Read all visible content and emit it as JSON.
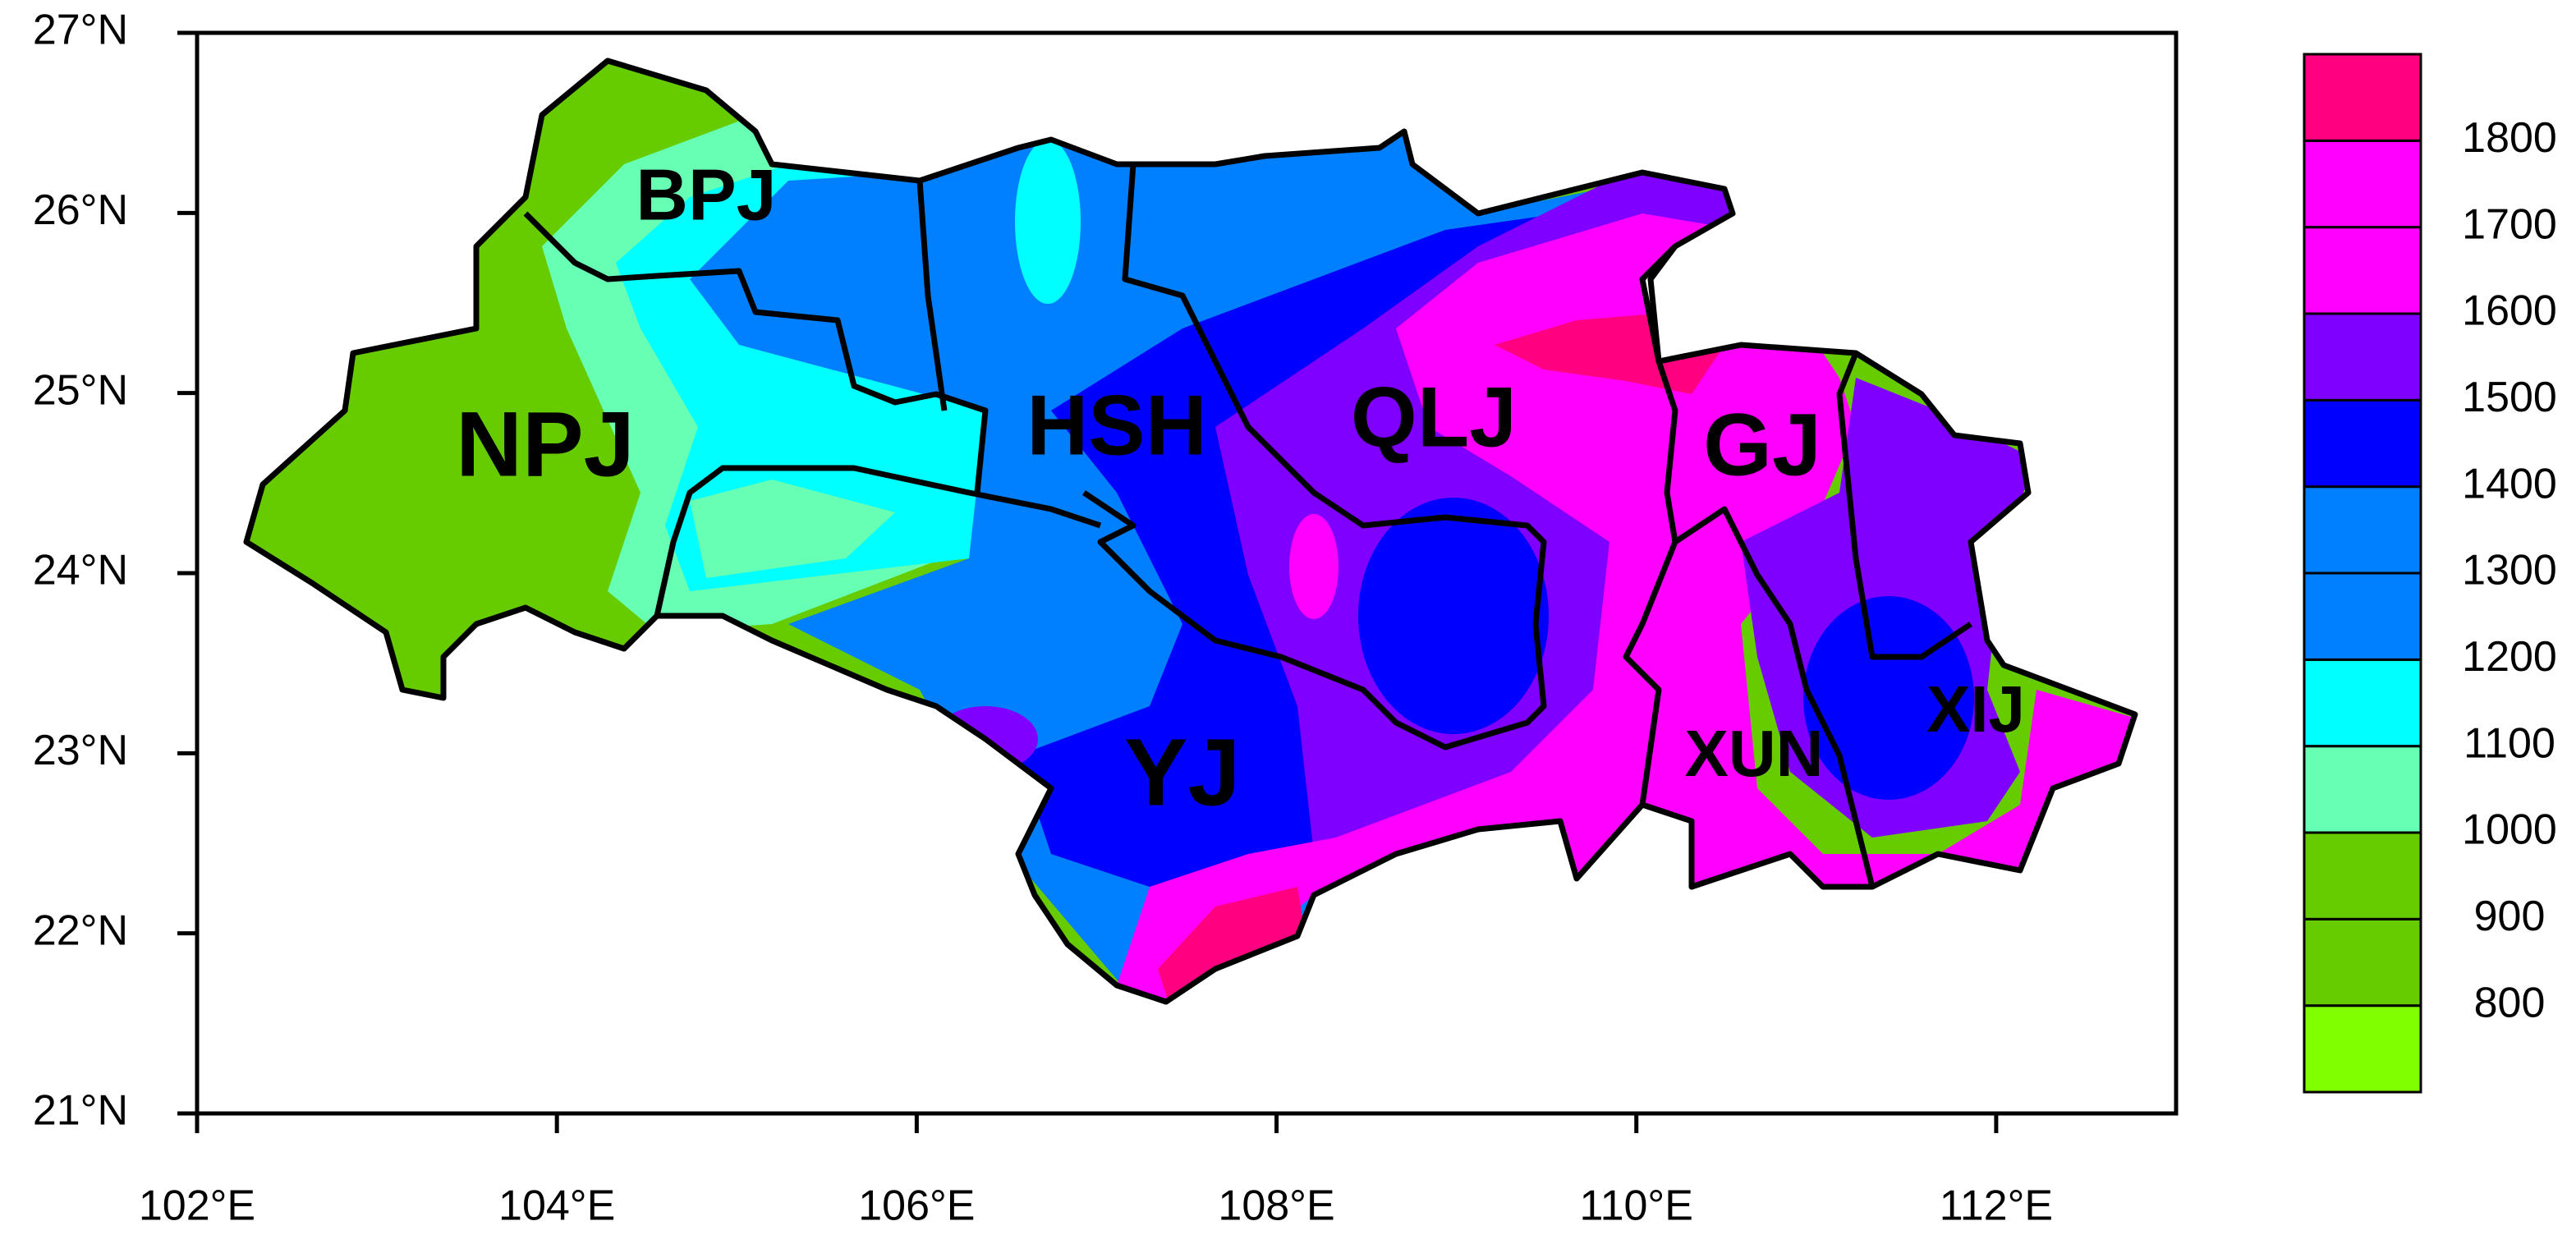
{
  "map": {
    "xlim": [
      102,
      113
    ],
    "ylim": [
      21,
      27
    ],
    "xticks": [
      {
        "value": 102,
        "label": "102°E"
      },
      {
        "value": 104,
        "label": "104°E"
      },
      {
        "value": 106,
        "label": "106°E"
      },
      {
        "value": 108,
        "label": "108°E"
      },
      {
        "value": 110,
        "label": "110°E"
      },
      {
        "value": 112,
        "label": "112°E"
      }
    ],
    "yticks": [
      {
        "value": 21,
        "label": "21°N"
      },
      {
        "value": 22,
        "label": "22°N"
      },
      {
        "value": 23,
        "label": "23°N"
      },
      {
        "value": 24,
        "label": "24°N"
      },
      {
        "value": 25,
        "label": "25°N"
      },
      {
        "value": 26,
        "label": "26°N"
      },
      {
        "value": 27,
        "label": "27°N"
      }
    ],
    "regions": [
      "BPJ",
      "NPJ",
      "HSH",
      "QLJ",
      "GJ",
      "YJ",
      "XUN",
      "XIJ"
    ]
  },
  "colorbar": {
    "levels": [
      800,
      900,
      1000,
      1100,
      1200,
      1300,
      1400,
      1500,
      1600,
      1700,
      1800
    ],
    "colors": [
      "#80ff00",
      "#66cc00",
      "#66cc00",
      "#66ffb3",
      "#00ffff",
      "#0080ff",
      "#0080ff",
      "#0000ff",
      "#8000ff",
      "#ff00ff",
      "#ff00ff",
      "#ff0080"
    ]
  }
}
